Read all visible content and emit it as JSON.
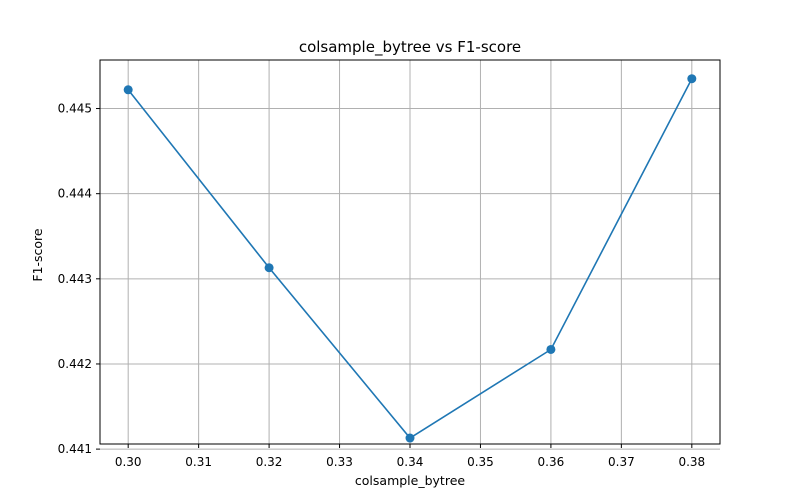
{
  "chart_data": {
    "type": "line",
    "title": "colsample_bytree vs F1-score",
    "xlabel": "colsample_bytree",
    "ylabel": "F1-score",
    "x": [
      0.3,
      0.32,
      0.34,
      0.36,
      0.38
    ],
    "series": [
      {
        "values": [
          0.44522,
          0.44313,
          0.44113,
          0.44217,
          0.44535
        ]
      }
    ],
    "xlim": [
      0.296,
      0.384
    ],
    "ylim": [
      0.44106,
      0.44557
    ],
    "xticks": [
      0.3,
      0.31,
      0.32,
      0.33,
      0.34,
      0.35,
      0.36,
      0.37,
      0.38
    ],
    "xtick_labels": [
      "0.30",
      "0.31",
      "0.32",
      "0.33",
      "0.34",
      "0.35",
      "0.36",
      "0.37",
      "0.38"
    ],
    "yticks": [
      0.441,
      0.442,
      0.443,
      0.444,
      0.445
    ],
    "ytick_labels": [
      "0.441",
      "0.442",
      "0.443",
      "0.444",
      "0.445"
    ],
    "grid": true,
    "marker": "circle",
    "line_color": "#1f77b4",
    "grid_color": "#b0b0b0"
  }
}
